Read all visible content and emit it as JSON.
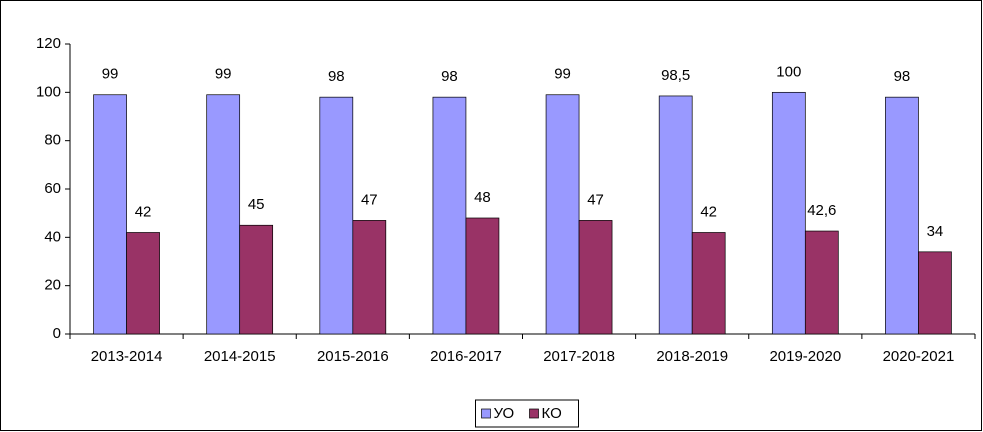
{
  "chart_data": {
    "type": "bar",
    "categories": [
      "2013-2014",
      "2014-2015",
      "2015-2016",
      "2016-2017",
      "2017-2018",
      "2018-2019",
      "2019-2020",
      "2020-2021"
    ],
    "series": [
      {
        "name": "УО",
        "color": "#9999ff",
        "values": [
          99,
          99,
          98,
          98,
          99,
          98.5,
          100,
          98
        ],
        "value_labels": [
          "99",
          "99",
          "98",
          "98",
          "99",
          "98,5",
          "100",
          "98"
        ]
      },
      {
        "name": "КО",
        "color": "#993366",
        "values": [
          42,
          45,
          47,
          48,
          47,
          42,
          42.6,
          34
        ],
        "value_labels": [
          "42",
          "45",
          "47",
          "48",
          "47",
          "42",
          "42,6",
          "34"
        ]
      }
    ],
    "ylim": [
      0,
      120
    ],
    "yticks": [
      0,
      20,
      40,
      60,
      80,
      100,
      120
    ],
    "grid": false,
    "legend": "bottom"
  }
}
